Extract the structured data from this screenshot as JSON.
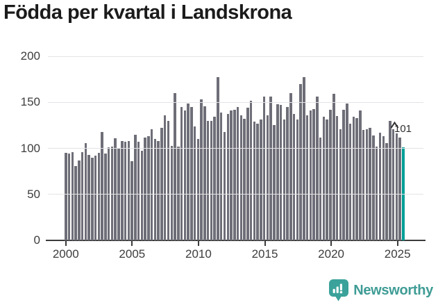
{
  "title": "Födda per kvartal i Landskrona",
  "annotation": {
    "last_value_label": "101"
  },
  "branding": {
    "name": "Newsworthy"
  },
  "colors": {
    "bar": "#6e6e78",
    "highlight": "#009e96",
    "grid": "#e4e4e6",
    "axis": "#3b3b3b",
    "title": "#1b1b1b",
    "brand": "#3e9c95",
    "background": "#ffffff"
  },
  "chart_data": {
    "type": "bar",
    "title": "Födda per kvartal i Landskrona",
    "ylabel": "",
    "xlabel": "",
    "frequency": "quarterly",
    "start_period": "2000 Q1",
    "end_period": "2025 Q3",
    "x_tick_labels": [
      "2000",
      "2005",
      "2010",
      "2015",
      "2020",
      "2025"
    ],
    "y_ticks": [
      0,
      50,
      100,
      150,
      200
    ],
    "ylim": [
      0,
      200
    ],
    "grid": "horizontal",
    "legend": "none",
    "highlight_last_bar": true,
    "last_value_label": "101",
    "values": [
      95,
      94,
      96,
      81,
      87,
      96,
      106,
      93,
      90,
      92,
      95,
      118,
      94,
      101,
      102,
      111,
      100,
      108,
      107,
      108,
      86,
      115,
      107,
      97,
      112,
      113,
      121,
      110,
      108,
      122,
      136,
      130,
      103,
      160,
      102,
      145,
      141,
      149,
      145,
      124,
      110,
      153,
      146,
      130,
      130,
      134,
      177,
      139,
      118,
      137,
      141,
      142,
      145,
      136,
      132,
      144,
      152,
      129,
      127,
      131,
      156,
      136,
      156,
      125,
      148,
      147,
      131,
      145,
      160,
      137,
      131,
      170,
      177,
      136,
      141,
      143,
      156,
      112,
      134,
      131,
      142,
      159,
      135,
      121,
      142,
      149,
      127,
      134,
      133,
      141,
      120,
      121,
      122,
      114,
      102,
      117,
      113,
      106,
      130,
      121,
      116,
      112,
      101
    ]
  }
}
